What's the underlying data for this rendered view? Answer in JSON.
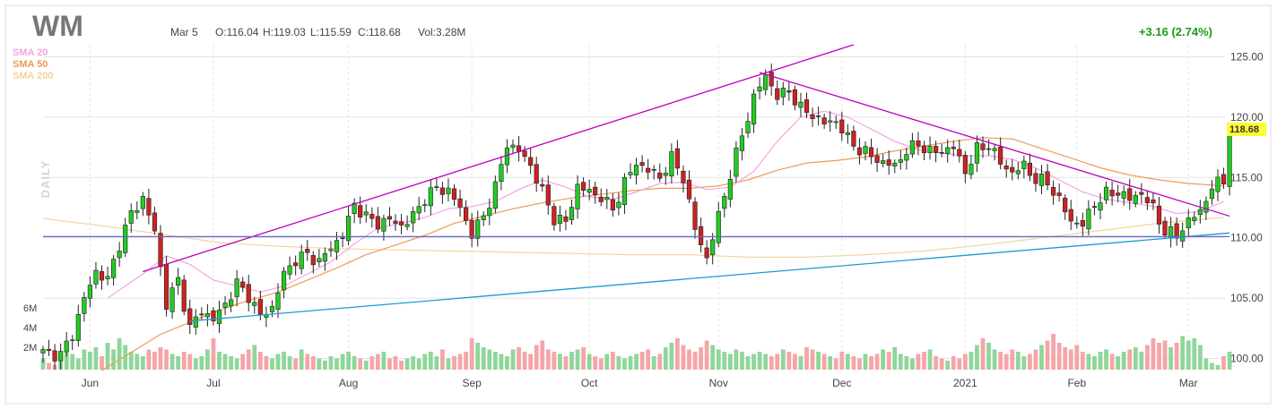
{
  "header": {
    "ticker": "WM",
    "date": "Mar 5",
    "open": "O:116.04",
    "high": "H:119.03",
    "low": "L:115.59",
    "close": "C:118.68",
    "volume": "Vol:3.28M",
    "change": "+3.16 (2.74%)"
  },
  "legend": [
    {
      "label": "SMA 20",
      "color": "#f3a3e3"
    },
    {
      "label": "SMA 50",
      "color": "#f09a55"
    },
    {
      "label": "SMA 200",
      "color": "#f2d59b"
    }
  ],
  "side_label": "DAILY",
  "last_price": "118.68",
  "colors": {
    "up": "#22cc22",
    "down": "#cc2222",
    "vol_up": "#8fd69b",
    "vol_down": "#f5a5a8",
    "trend_purple": "#bb00bb",
    "trend_blue": "#1e9ad6",
    "horizontal": "#6666cc"
  },
  "chart_data": {
    "type": "candlestick",
    "y_ticks": [
      "125.00",
      "120.00",
      "115.00",
      "110.00",
      "105.00",
      "100.00"
    ],
    "ylim": [
      99,
      126
    ],
    "volume_ticks": [
      "6M",
      "4M",
      "2M"
    ],
    "x_ticks": [
      {
        "label": "Jun",
        "i": 8
      },
      {
        "label": "Jul",
        "i": 29
      },
      {
        "label": "Aug",
        "i": 52
      },
      {
        "label": "Sep",
        "i": 73
      },
      {
        "label": "Oct",
        "i": 93
      },
      {
        "label": "Nov",
        "i": 115
      },
      {
        "label": "Dec",
        "i": 136
      },
      {
        "label": "2021",
        "i": 157
      },
      {
        "label": "Feb",
        "i": 176
      },
      {
        "label": "Mar",
        "i": 195
      }
    ],
    "anchors": [
      [
        0,
        100.5
      ],
      [
        3,
        100.3
      ],
      [
        5,
        102
      ],
      [
        7,
        105
      ],
      [
        9,
        107.2
      ],
      [
        11,
        106.5
      ],
      [
        13,
        109.5
      ],
      [
        15,
        112
      ],
      [
        17,
        113.3
      ],
      [
        19,
        110.5
      ],
      [
        21,
        104.5
      ],
      [
        23,
        106.5
      ],
      [
        25,
        102.5
      ],
      [
        27,
        104
      ],
      [
        29,
        103.2
      ],
      [
        31,
        104.5
      ],
      [
        33,
        106.2
      ],
      [
        35,
        105.2
      ],
      [
        37,
        103.5
      ],
      [
        39,
        104.2
      ],
      [
        41,
        107
      ],
      [
        43,
        108.2
      ],
      [
        45,
        108.6
      ],
      [
        47,
        108
      ],
      [
        49,
        109.2
      ],
      [
        51,
        110.2
      ],
      [
        53,
        112.8
      ],
      [
        55,
        111.7
      ],
      [
        57,
        111.2
      ],
      [
        59,
        111.5
      ],
      [
        61,
        111
      ],
      [
        63,
        111.8
      ],
      [
        65,
        113.3
      ],
      [
        67,
        114.1
      ],
      [
        69,
        113.9
      ],
      [
        71,
        112.5
      ],
      [
        73,
        110.3
      ],
      [
        75,
        111.8
      ],
      [
        77,
        114.2
      ],
      [
        79,
        117.8
      ],
      [
        81,
        117.2
      ],
      [
        83,
        116
      ],
      [
        85,
        113.8
      ],
      [
        87,
        111.6
      ],
      [
        89,
        111.3
      ],
      [
        91,
        114.3
      ],
      [
        93,
        113.8
      ],
      [
        95,
        113.4
      ],
      [
        97,
        112.3
      ],
      [
        99,
        114.6
      ],
      [
        101,
        116.2
      ],
      [
        103,
        115.6
      ],
      [
        105,
        115
      ],
      [
        107,
        116.6
      ],
      [
        109,
        115
      ],
      [
        111,
        110.7
      ],
      [
        113,
        108.3
      ],
      [
        115,
        111.8
      ],
      [
        117,
        115.3
      ],
      [
        119,
        118.5
      ],
      [
        121,
        121.6
      ],
      [
        123,
        123.5
      ],
      [
        125,
        121.7
      ],
      [
        127,
        122.2
      ],
      [
        129,
        120.7
      ],
      [
        131,
        120.2
      ],
      [
        133,
        119.5
      ],
      [
        135,
        119.7
      ],
      [
        137,
        118.2
      ],
      [
        139,
        117.3
      ],
      [
        141,
        116.8
      ],
      [
        143,
        116.2
      ],
      [
        145,
        116
      ],
      [
        147,
        117.2
      ],
      [
        149,
        117.8
      ],
      [
        151,
        117.1
      ],
      [
        153,
        117.2
      ],
      [
        155,
        117.5
      ],
      [
        157,
        115.5
      ],
      [
        159,
        117.3
      ],
      [
        161,
        117.7
      ],
      [
        163,
        116.2
      ],
      [
        165,
        115.4
      ],
      [
        167,
        116
      ],
      [
        169,
        114.8
      ],
      [
        171,
        114.6
      ],
      [
        173,
        113.1
      ],
      [
        175,
        111.4
      ],
      [
        177,
        111.1
      ],
      [
        179,
        112.8
      ],
      [
        181,
        113.6
      ],
      [
        183,
        113.8
      ],
      [
        185,
        113.2
      ],
      [
        187,
        113.7
      ],
      [
        189,
        112.4
      ],
      [
        191,
        110.5
      ],
      [
        193,
        110.2
      ],
      [
        195,
        111.4
      ],
      [
        197,
        112.2
      ],
      [
        199,
        114.2
      ],
      [
        201,
        114.8
      ],
      [
        202,
        118.68
      ]
    ],
    "volumes": [
      5,
      3,
      2,
      6,
      8,
      7,
      5,
      9,
      8,
      10,
      6,
      12,
      9,
      14,
      11,
      8,
      7,
      6,
      9,
      8,
      10,
      9,
      7,
      6,
      8,
      7,
      5,
      6,
      9,
      14,
      8,
      7,
      6,
      5,
      7,
      9,
      11,
      8,
      6,
      5,
      7,
      8,
      6,
      5,
      9,
      7,
      6,
      5,
      4,
      6,
      5,
      7,
      8,
      6,
      5,
      4,
      6,
      7,
      8,
      5,
      6,
      4,
      5,
      6,
      5,
      7,
      8,
      6,
      9,
      5,
      6,
      7,
      8,
      14,
      12,
      10,
      9,
      8,
      7,
      6,
      9,
      10,
      8,
      7,
      11,
      13,
      9,
      8,
      7,
      6,
      8,
      9,
      10,
      7,
      6,
      5,
      7,
      8,
      6,
      5,
      6,
      7,
      8,
      9,
      6,
      7,
      10,
      12,
      14,
      11,
      9,
      8,
      10,
      13,
      11,
      9,
      8,
      7,
      9,
      8,
      6,
      7,
      8,
      7,
      6,
      7,
      9,
      8,
      7,
      6,
      10,
      9,
      8,
      7,
      6,
      5,
      8,
      7,
      6,
      5,
      7,
      6,
      7,
      9,
      8,
      10,
      7,
      6,
      5,
      7,
      8,
      9,
      6,
      5,
      4,
      6,
      5,
      7,
      8,
      11,
      14,
      12,
      9,
      8,
      7,
      9,
      8,
      6,
      7,
      9,
      11,
      13,
      16,
      12,
      10,
      9,
      11,
      8,
      7,
      6,
      8,
      9,
      7,
      6,
      8,
      9,
      10,
      8,
      11,
      14,
      12,
      13,
      10,
      12,
      15,
      13,
      14,
      11
    ],
    "sma20": [
      [
        11,
        105
      ],
      [
        17,
        107
      ],
      [
        21,
        108.5
      ],
      [
        25,
        107.8
      ],
      [
        29,
        106.5
      ],
      [
        33,
        106
      ],
      [
        37,
        105.5
      ],
      [
        41,
        106
      ],
      [
        45,
        107
      ],
      [
        49,
        108
      ],
      [
        53,
        109.5
      ],
      [
        57,
        110.8
      ],
      [
        61,
        111.2
      ],
      [
        65,
        111.7
      ],
      [
        69,
        112.4
      ],
      [
        73,
        112.6
      ],
      [
        77,
        113
      ],
      [
        81,
        114
      ],
      [
        85,
        114.8
      ],
      [
        89,
        114.2
      ],
      [
        93,
        113.4
      ],
      [
        97,
        113.2
      ],
      [
        101,
        113.8
      ],
      [
        105,
        114.5
      ],
      [
        109,
        114.6
      ],
      [
        113,
        114
      ],
      [
        117,
        114.2
      ],
      [
        121,
        115.5
      ],
      [
        125,
        118
      ],
      [
        129,
        120
      ],
      [
        133,
        120.5
      ],
      [
        137,
        120
      ],
      [
        141,
        119
      ],
      [
        145,
        118
      ],
      [
        149,
        117.3
      ],
      [
        153,
        117
      ],
      [
        157,
        116.8
      ],
      [
        161,
        116.8
      ],
      [
        165,
        116.5
      ],
      [
        169,
        115.8
      ],
      [
        173,
        114.8
      ],
      [
        177,
        113.8
      ],
      [
        181,
        113.2
      ],
      [
        185,
        112.9
      ],
      [
        189,
        112.6
      ],
      [
        193,
        112
      ],
      [
        197,
        112.2
      ],
      [
        201,
        113
      ]
    ],
    "sma50": [
      [
        10,
        99
      ],
      [
        15,
        100.5
      ],
      [
        20,
        102
      ],
      [
        25,
        103
      ],
      [
        30,
        104
      ],
      [
        35,
        104.8
      ],
      [
        40,
        105.5
      ],
      [
        45,
        106.5
      ],
      [
        50,
        107.5
      ],
      [
        55,
        108.6
      ],
      [
        60,
        109.4
      ],
      [
        65,
        110.2
      ],
      [
        70,
        111.2
      ],
      [
        75,
        111.8
      ],
      [
        80,
        112.4
      ],
      [
        85,
        112.9
      ],
      [
        90,
        113.3
      ],
      [
        95,
        113.6
      ],
      [
        100,
        113.9
      ],
      [
        105,
        114.1
      ],
      [
        110,
        114.1
      ],
      [
        115,
        114.3
      ],
      [
        120,
        114.8
      ],
      [
        125,
        115.6
      ],
      [
        130,
        116.2
      ],
      [
        135,
        116.4
      ],
      [
        140,
        116.7
      ],
      [
        145,
        117.2
      ],
      [
        150,
        117.6
      ],
      [
        155,
        118
      ],
      [
        160,
        118.3
      ],
      [
        165,
        118.2
      ],
      [
        170,
        117.4
      ],
      [
        175,
        116.6
      ],
      [
        180,
        115.8
      ],
      [
        185,
        115.2
      ],
      [
        190,
        114.8
      ],
      [
        195,
        114.5
      ],
      [
        201,
        114.3
      ]
    ],
    "sma200": [
      [
        0,
        111.6
      ],
      [
        10,
        111
      ],
      [
        20,
        110.3
      ],
      [
        30,
        109.6
      ],
      [
        40,
        109.3
      ],
      [
        50,
        109.1
      ],
      [
        60,
        109
      ],
      [
        70,
        108.9
      ],
      [
        80,
        108.8
      ],
      [
        90,
        108.7
      ],
      [
        100,
        108.6
      ],
      [
        110,
        108.6
      ],
      [
        120,
        108.4
      ],
      [
        130,
        108.4
      ],
      [
        140,
        108.6
      ],
      [
        150,
        108.9
      ],
      [
        160,
        109.4
      ],
      [
        170,
        110
      ],
      [
        180,
        110.6
      ],
      [
        190,
        111.2
      ],
      [
        201,
        111.7
      ]
    ],
    "trendlines": [
      {
        "name": "upper-rising",
        "color": "#bb00bb",
        "from": [
          17,
          107.2
        ],
        "to": [
          138,
          126
        ]
      },
      {
        "name": "upper-falling",
        "color": "#bb00bb",
        "from": [
          122,
          123.7
        ],
        "to": [
          202,
          111.8
        ]
      },
      {
        "name": "lower-rising",
        "color": "#1e9ad6",
        "from": [
          25,
          103.1
        ],
        "to": [
          202,
          110.4
        ]
      },
      {
        "name": "horizontal",
        "color": "#6666cc",
        "from": [
          0,
          110.1
        ],
        "to": [
          202,
          110.1
        ]
      }
    ]
  }
}
